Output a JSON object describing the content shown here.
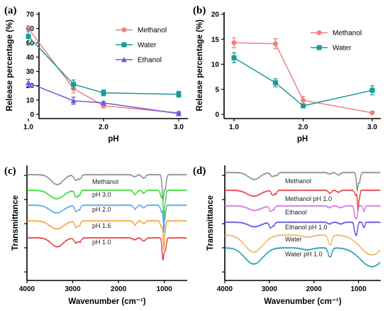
{
  "chart_data": [
    {
      "panel": "(a)",
      "type": "line",
      "xlabel": "pH",
      "ylabel": "Release percentage (%)",
      "xticks": [
        "1.0",
        "2.0",
        "3.0"
      ],
      "yticks": [
        "0",
        "10",
        "20",
        "30",
        "40",
        "50",
        "60",
        "70"
      ],
      "xlim": [
        1.0,
        3.0
      ],
      "ylim": [
        0,
        70
      ],
      "legend": "top-right",
      "series": [
        {
          "name": "Methanol",
          "color": "#f07f7f",
          "marker": "circle",
          "x": [
            1.0,
            1.6,
            2.0,
            3.0
          ],
          "y": [
            60,
            18,
            6,
            1
          ],
          "err": [
            2,
            3,
            1.5,
            1
          ]
        },
        {
          "name": "Water",
          "color": "#1a9a9a",
          "marker": "square",
          "x": [
            1.0,
            1.6,
            2.0,
            3.0
          ],
          "y": [
            54.5,
            21,
            15,
            14
          ],
          "err": [
            5,
            3,
            2,
            2
          ]
        },
        {
          "name": "Ethanol",
          "color": "#6a5ae0",
          "marker": "triangle",
          "x": [
            1.0,
            1.6,
            2.0,
            3.0
          ],
          "y": [
            22,
            9.5,
            8,
            0.5
          ],
          "err": [
            2.5,
            2.5,
            1,
            0.5
          ]
        }
      ]
    },
    {
      "panel": "(b)",
      "type": "line",
      "xlabel": "pH",
      "ylabel": "Release percentage (%)",
      "xticks": [
        "1.0",
        "2.0",
        "3.0"
      ],
      "yticks": [
        "0",
        "5",
        "10",
        "15",
        "20"
      ],
      "xlim": [
        1.0,
        3.0
      ],
      "ylim": [
        0,
        20
      ],
      "legend": "top-right",
      "series": [
        {
          "name": "Methanol",
          "color": "#f07f7f",
          "marker": "circle",
          "x": [
            1.0,
            1.6,
            2.0,
            3.0
          ],
          "y": [
            14.3,
            14.1,
            2.8,
            0.3
          ],
          "err": [
            1.0,
            1.0,
            0.8,
            0.2
          ]
        },
        {
          "name": "Water",
          "color": "#1a9a9a",
          "marker": "square",
          "x": [
            1.0,
            1.6,
            2.0,
            3.0
          ],
          "y": [
            11.3,
            6.3,
            1.7,
            4.8
          ],
          "err": [
            1.0,
            0.8,
            0.3,
            0.9
          ]
        }
      ]
    },
    {
      "panel": "(c)",
      "type": "line",
      "xlabel": "Wavenumber (cm⁻¹)",
      "ylabel": "Transmittance",
      "xticks": [
        "4000",
        "3000",
        "2000",
        "1000"
      ],
      "xlim": [
        4000,
        500
      ],
      "series": [
        {
          "name": "Methanol",
          "color": "#888888"
        },
        {
          "name": "pH 3.0",
          "color": "#2ed82e"
        },
        {
          "name": "pH 2.0",
          "color": "#4ea3f0"
        },
        {
          "name": "pH 1.6",
          "color": "#f5a13a"
        },
        {
          "name": "pH 1.0",
          "color": "#e33a3a"
        }
      ]
    },
    {
      "panel": "(d)",
      "type": "line",
      "xlabel": "Wavenumber (cm⁻¹)",
      "ylabel": "Transmittance",
      "xticks": [
        "4000",
        "3000",
        "2000",
        "1000"
      ],
      "xlim": [
        4000,
        500
      ],
      "series": [
        {
          "name": "Methanol",
          "color": "#888888"
        },
        {
          "name": "Methanol pH 1.0",
          "color": "#e33a3a"
        },
        {
          "name": "Ethanol",
          "color": "#d070e0"
        },
        {
          "name": "Ethanol pH 1.0",
          "color": "#5a4ae0"
        },
        {
          "name": "Water",
          "color": "#f5b060"
        },
        {
          "name": "Water pH 1.0",
          "color": "#1a9aa8"
        }
      ]
    }
  ]
}
